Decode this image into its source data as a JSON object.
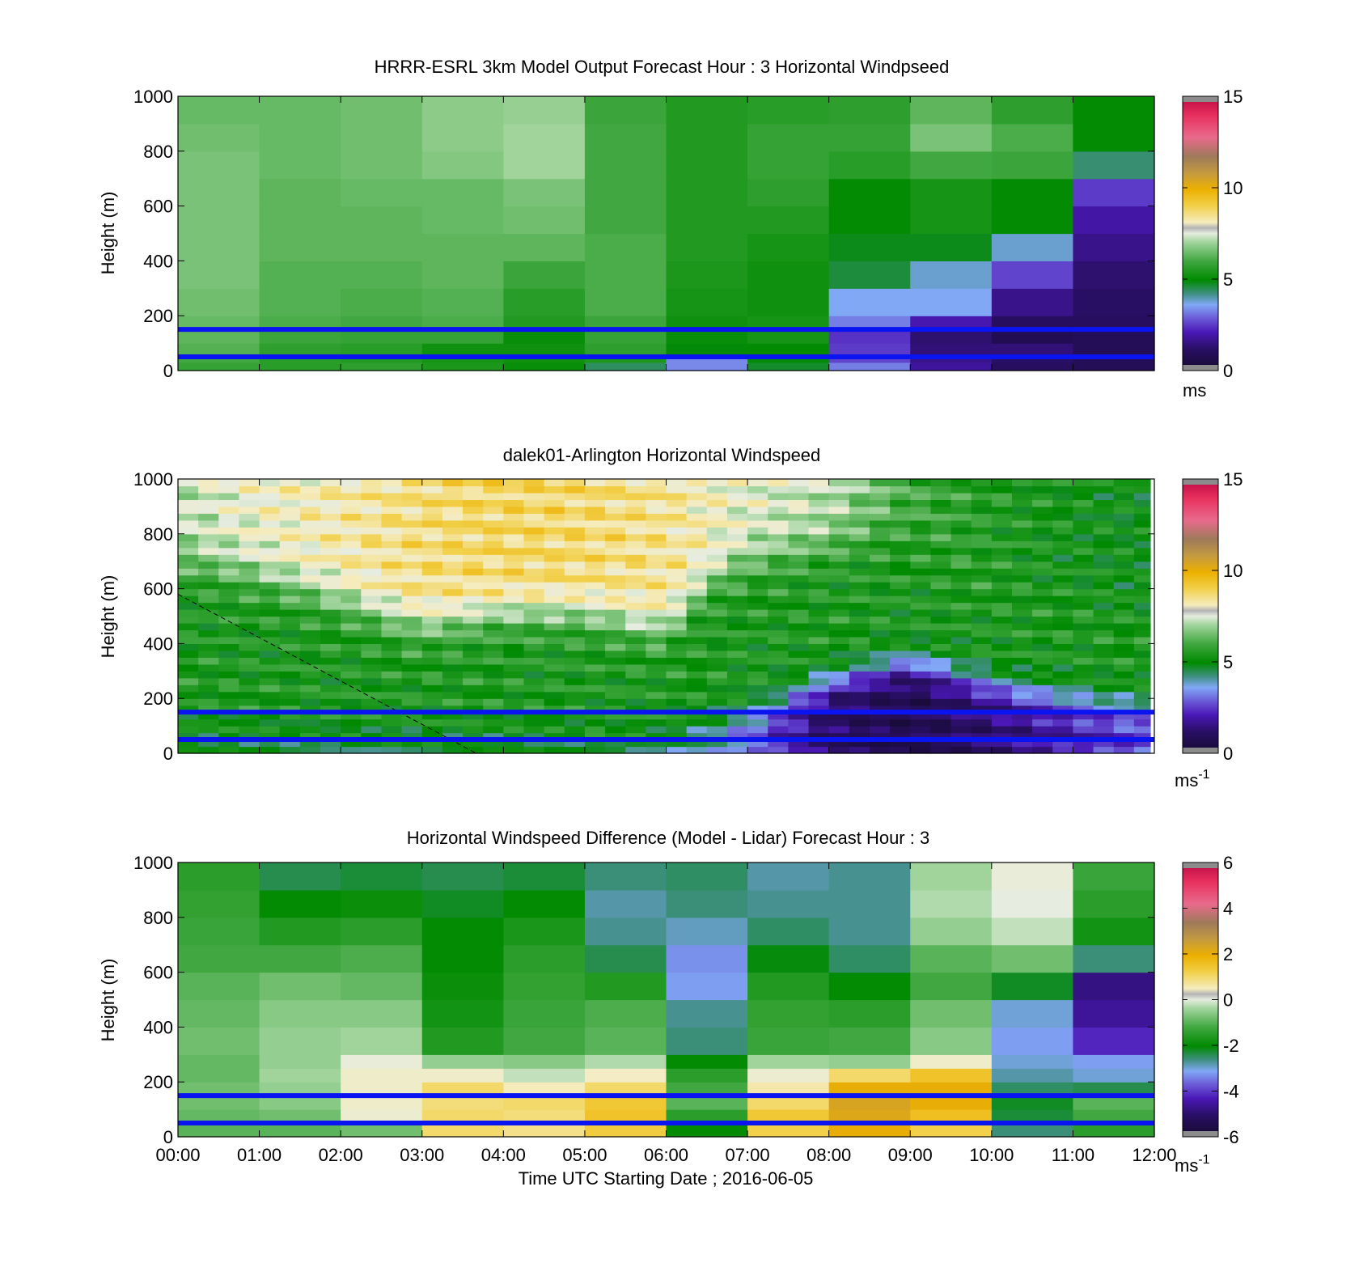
{
  "chart_data": [
    {
      "type": "heatmap",
      "title": "HRRR-ESRL 3km Model Output   Forecast Hour : 3 Horizontal Windpseed",
      "ylabel": "Height (m)",
      "xlabel": "",
      "xlim": [
        "00:00",
        "12:00"
      ],
      "ylim": [
        0,
        1000
      ],
      "yticks": [
        "0",
        "200",
        "400",
        "600",
        "800",
        "1000"
      ],
      "colorbar": {
        "ticks": [
          "0",
          "5",
          "10",
          "15"
        ],
        "range": [
          0,
          15
        ],
        "unit": "ms"
      },
      "reference_lines_m": [
        50,
        150
      ],
      "time_bins_hours": [
        0,
        1,
        2,
        3,
        4,
        5,
        6,
        7,
        8,
        9,
        10,
        11
      ],
      "height_bins_m": [
        0,
        30,
        60,
        100,
        150,
        200,
        300,
        400,
        500,
        600,
        700,
        800,
        900,
        1000
      ],
      "values": [
        [
          5.8,
          5.6,
          5.7,
          5.4,
          5.1,
          4.4,
          3.3,
          4.7,
          3.2,
          1.8,
          1.0,
          0.8
        ],
        [
          6.0,
          5.6,
          5.5,
          5.3,
          5.2,
          5.4,
          3.3,
          4.9,
          2.6,
          1.6,
          1.2,
          0.8
        ],
        [
          6.2,
          5.7,
          5.6,
          5.2,
          5.2,
          5.7,
          4.9,
          5.0,
          2.5,
          1.4,
          1.4,
          0.8
        ],
        [
          6.3,
          5.9,
          5.8,
          5.8,
          5.1,
          5.8,
          5.1,
          5.3,
          2.4,
          1.3,
          0.6,
          0.8
        ],
        [
          6.4,
          6.1,
          6.0,
          6.1,
          5.5,
          5.9,
          5.2,
          5.3,
          3.2,
          2.0,
          1.0,
          1.0
        ],
        [
          6.5,
          6.2,
          6.1,
          6.2,
          5.6,
          6.1,
          5.3,
          5.2,
          3.6,
          3.6,
          1.6,
          1.1
        ],
        [
          6.6,
          6.2,
          6.2,
          6.3,
          5.9,
          6.1,
          5.4,
          5.2,
          4.6,
          3.8,
          2.6,
          1.3
        ],
        [
          6.6,
          6.3,
          6.3,
          6.3,
          6.3,
          6.1,
          5.5,
          5.3,
          4.8,
          4.8,
          3.8,
          1.6
        ],
        [
          6.6,
          6.3,
          6.3,
          6.4,
          6.5,
          6.0,
          5.5,
          5.5,
          5.0,
          5.3,
          5.0,
          1.9
        ],
        [
          6.6,
          6.3,
          6.4,
          6.4,
          6.6,
          6.0,
          5.5,
          5.7,
          5.0,
          5.3,
          5.0,
          2.5
        ],
        [
          6.6,
          6.4,
          6.5,
          6.7,
          7.0,
          6.0,
          5.5,
          5.8,
          5.6,
          6.0,
          5.9,
          4.3
        ],
        [
          6.5,
          6.4,
          6.5,
          6.8,
          7.0,
          6.0,
          5.5,
          5.8,
          5.8,
          6.6,
          6.1,
          5.0
        ],
        [
          6.4,
          6.4,
          6.5,
          6.8,
          6.9,
          5.9,
          5.5,
          5.6,
          5.7,
          6.3,
          5.7,
          5.0
        ]
      ]
    },
    {
      "type": "heatmap",
      "title": "dalek01-Arlington  Horizontal Windspeed",
      "ylabel": "Height (m)",
      "xlabel": "",
      "xlim": [
        "00:00",
        "12:00"
      ],
      "ylim": [
        0,
        1000
      ],
      "yticks": [
        "0",
        "200",
        "400",
        "600",
        "800",
        "1000"
      ],
      "colorbar": {
        "ticks": [
          "0",
          "5",
          "10",
          "15"
        ],
        "range": [
          0,
          15
        ],
        "unit": "ms",
        "unit_exponent": "-1"
      },
      "reference_lines_m": [
        50,
        150
      ],
      "dashed_line": {
        "from": [
          "00:00",
          580
        ],
        "to": [
          "03:40",
          0
        ]
      },
      "time_bins_hours": [
        0,
        0.25,
        0.5,
        0.75,
        1,
        1.25,
        1.5,
        1.75,
        2,
        2.25,
        2.5,
        2.75,
        3,
        3.25,
        3.5,
        3.75,
        4,
        4.25,
        4.5,
        4.75,
        5,
        5.25,
        5.5,
        5.75,
        6,
        6.25,
        6.5,
        6.75,
        7,
        7.25,
        7.5,
        7.75,
        8,
        8.25,
        8.5,
        8.75,
        9,
        9.25,
        9.5,
        9.75,
        10,
        10.25,
        10.5,
        10.75,
        11,
        11.25,
        11.5,
        11.75
      ],
      "profile_keyframes": [
        {
          "t": 0.0,
          "top": 7.2,
          "trans": 700,
          "low": 6.0,
          "low_top": 0
        },
        {
          "t": 1.0,
          "top": 7.8,
          "trans": 650,
          "low": 5.8,
          "low_top": 0
        },
        {
          "t": 2.0,
          "top": 8.2,
          "trans": 560,
          "low": 5.5,
          "low_top": 0
        },
        {
          "t": 3.0,
          "top": 8.6,
          "trans": 470,
          "low": 5.0,
          "low_top": 0
        },
        {
          "t": 4.0,
          "top": 8.8,
          "trans": 520,
          "low": 4.6,
          "low_top": 0
        },
        {
          "t": 5.0,
          "top": 8.7,
          "trans": 520,
          "low": 4.4,
          "low_top": 0
        },
        {
          "t": 6.0,
          "top": 8.4,
          "trans": 450,
          "low": 4.2,
          "low_top": 60
        },
        {
          "t": 6.5,
          "top": 8.0,
          "trans": 620,
          "low": 4.0,
          "low_top": 120
        },
        {
          "t": 7.0,
          "top": 7.6,
          "trans": 700,
          "low": 3.0,
          "low_top": 150
        },
        {
          "t": 8.0,
          "top": 7.2,
          "trans": 760,
          "low": 1.0,
          "low_top": 260
        },
        {
          "t": 9.0,
          "top": 6.0,
          "trans": 820,
          "low": 0.6,
          "low_top": 330
        },
        {
          "t": 10.0,
          "top": 5.5,
          "trans": 560,
          "low": 1.3,
          "low_top": 250
        },
        {
          "t": 11.0,
          "top": 5.2,
          "trans": 600,
          "low": 2.0,
          "low_top": 200
        },
        {
          "t": 12.0,
          "top": 5.0,
          "trans": 500,
          "low": 2.6,
          "low_top": 170
        }
      ]
    },
    {
      "type": "heatmap",
      "title": "Horizontal Windspeed Difference (Model - Lidar) Forecast Hour : 3",
      "ylabel": "Height (m)",
      "xlabel": "Time UTC  Starting Date ; 2016-06-05",
      "xticks": [
        "00:00",
        "01:00",
        "02:00",
        "03:00",
        "04:00",
        "05:00",
        "06:00",
        "07:00",
        "08:00",
        "09:00",
        "10:00",
        "11:00",
        "12:00"
      ],
      "ylim": [
        0,
        1000
      ],
      "yticks": [
        "0",
        "200",
        "400",
        "600",
        "800",
        "1000"
      ],
      "colorbar": {
        "ticks": [
          "-6",
          "-4",
          "-2",
          "0",
          "2",
          "4",
          "6"
        ],
        "range": [
          -6,
          6
        ],
        "unit": "ms",
        "unit_exponent": "-1"
      },
      "reference_lines_m": [
        50,
        150
      ],
      "time_bins_hours": [
        0,
        1,
        2,
        3,
        4,
        5,
        6,
        7,
        8,
        9,
        10,
        11
      ],
      "height_bins_m": [
        0,
        50,
        100,
        150,
        200,
        250,
        300,
        400,
        500,
        600,
        700,
        800,
        900,
        1000
      ],
      "values": [
        [
          -1.0,
          -1.0,
          -0.8,
          1.0,
          0.8,
          1.3,
          -2.0,
          1.2,
          2.0,
          1.2,
          -2.6,
          -1.5
        ],
        [
          -0.9,
          -0.8,
          0.2,
          1.0,
          0.9,
          1.5,
          -1.5,
          1.4,
          2.2,
          1.6,
          -2.3,
          -1.2
        ],
        [
          -0.8,
          -0.6,
          0.3,
          0.9,
          1.0,
          1.4,
          -1.0,
          1.0,
          2.3,
          2.0,
          -2.2,
          -1.0
        ],
        [
          -0.8,
          -0.5,
          0.3,
          1.0,
          0.5,
          1.0,
          -1.2,
          0.6,
          2.0,
          2.0,
          -2.5,
          -2.4
        ],
        [
          -0.9,
          -0.4,
          0.3,
          0.3,
          -0.2,
          0.4,
          -1.5,
          0.2,
          1.0,
          1.5,
          -2.8,
          -3.0
        ],
        [
          -0.9,
          -0.5,
          0.1,
          -0.5,
          -0.6,
          -0.3,
          -2.0,
          -0.4,
          -0.5,
          0.3,
          -3.0,
          -3.2
        ],
        [
          -0.8,
          -0.5,
          -0.4,
          -1.6,
          -1.2,
          -1.0,
          -2.6,
          -1.3,
          -1.2,
          -0.6,
          -3.2,
          -4.2
        ],
        [
          -0.9,
          -0.6,
          -0.6,
          -1.8,
          -1.3,
          -1.1,
          -2.7,
          -1.4,
          -1.5,
          -0.8,
          -3.0,
          -4.6
        ],
        [
          -1.0,
          -0.8,
          -0.9,
          -1.9,
          -1.4,
          -1.6,
          -3.2,
          -1.6,
          -2.0,
          -1.2,
          -2.2,
          -4.8
        ],
        [
          -1.2,
          -1.2,
          -1.1,
          -2.0,
          -1.5,
          -2.4,
          -3.3,
          -2.1,
          -2.5,
          -1.0,
          -0.8,
          -2.6
        ],
        [
          -1.3,
          -1.6,
          -1.5,
          -2.0,
          -1.7,
          -2.7,
          -2.9,
          -2.5,
          -2.7,
          -0.5,
          -0.2,
          -1.8
        ],
        [
          -1.4,
          -2.0,
          -1.9,
          -2.2,
          -2.0,
          -2.8,
          -2.6,
          -2.7,
          -2.7,
          -0.3,
          0.0,
          -1.5
        ],
        [
          -1.5,
          -2.4,
          -2.3,
          -2.4,
          -2.3,
          -2.6,
          -2.5,
          -2.8,
          -2.7,
          -0.4,
          0.1,
          -1.3
        ]
      ]
    }
  ]
}
